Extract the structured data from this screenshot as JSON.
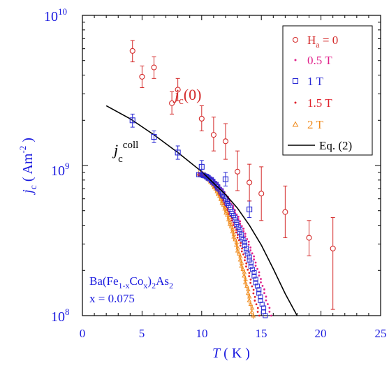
{
  "chart_data": {
    "type": "scatter",
    "xaxis": {
      "label_main": "T",
      "label_unit": " ( K )",
      "range": [
        0,
        25
      ],
      "ticks": [
        0,
        5,
        10,
        15,
        20,
        25
      ],
      "tick_labels": [
        "0",
        "5",
        "10",
        "15",
        "20",
        "25"
      ],
      "color": "#1a1adf"
    },
    "yaxis": {
      "label_main": "j",
      "label_sub": "c",
      "label_unit": " ( Am",
      "label_sup": "-2",
      "label_close": " )",
      "scale": "log",
      "range": [
        100000000.0,
        10000000000.0
      ],
      "major_ticks": [
        100000000.0,
        1000000000.0,
        10000000000.0
      ],
      "tick_base": "10",
      "tick_exps": [
        "8",
        "9",
        "10"
      ],
      "color": "#1a1adf"
    },
    "legend": {
      "placement": "top-right",
      "entries": [
        {
          "label_main": "H",
          "label_sub": "a",
          "label_rest": " = 0",
          "marker": "circle",
          "color": "#d42a2a"
        },
        {
          "label_main": "0.5 T",
          "marker": "dot",
          "color": "#e0208a"
        },
        {
          "label_main": "1 T",
          "marker": "square",
          "color": "#2a2ad4"
        },
        {
          "label_main": "1.5 T",
          "marker": "dot",
          "color": "#e0202a"
        },
        {
          "label_main": "2 T",
          "marker": "triangle",
          "color": "#f08a1a"
        },
        {
          "label_main": "Eq. (2)",
          "marker": "line",
          "color": "#000000"
        }
      ]
    },
    "annotations": {
      "jc0": {
        "main": "j",
        "sub": "c",
        "rest": "(0)",
        "color": "#d42a2a"
      },
      "jccoll": {
        "main": "j",
        "sub": "c",
        "sup": "coll",
        "color": "#000000"
      },
      "compound_line1": {
        "a": "Ba(Fe",
        "b": "1-x",
        "c": "Co",
        "d": "x",
        "e": ")",
        "f": "2",
        "g": "As",
        "h": "2"
      },
      "compound_line2": "x = 0.075",
      "compound_color": "#1a1adf"
    },
    "series": [
      {
        "name": "H_a = 0",
        "marker": "circle",
        "color": "#d42a2a",
        "points": [
          {
            "x": 4.2,
            "y": 5800000000.0,
            "err_lo": 4900000000.0,
            "err_hi": 6800000000.0
          },
          {
            "x": 5.0,
            "y": 3900000000.0,
            "err_lo": 3300000000.0,
            "err_hi": 4600000000.0
          },
          {
            "x": 6.0,
            "y": 4500000000.0,
            "err_lo": 3800000000.0,
            "err_hi": 5300000000.0
          },
          {
            "x": 7.5,
            "y": 2600000000.0,
            "err_lo": 2200000000.0,
            "err_hi": 3100000000.0
          },
          {
            "x": 8.0,
            "y": 3200000000.0,
            "err_lo": 2700000000.0,
            "err_hi": 3800000000.0
          },
          {
            "x": 10.0,
            "y": 2050000000.0,
            "err_lo": 1700000000.0,
            "err_hi": 2500000000.0
          },
          {
            "x": 11.0,
            "y": 1600000000.0,
            "err_lo": 1250000000.0,
            "err_hi": 2100000000.0
          },
          {
            "x": 12.0,
            "y": 1450000000.0,
            "err_lo": 1100000000.0,
            "err_hi": 1900000000.0
          },
          {
            "x": 13.0,
            "y": 910000000.0,
            "err_lo": 680000000.0,
            "err_hi": 1250000000.0
          },
          {
            "x": 14.0,
            "y": 770000000.0,
            "err_lo": 580000000.0,
            "err_hi": 1020000000.0
          },
          {
            "x": 15.0,
            "y": 650000000.0,
            "err_lo": 430000000.0,
            "err_hi": 980000000.0
          },
          {
            "x": 17.0,
            "y": 490000000.0,
            "err_lo": 330000000.0,
            "err_hi": 730000000.0
          },
          {
            "x": 19.0,
            "y": 330000000.0,
            "err_lo": 250000000.0,
            "err_hi": 430000000.0
          },
          {
            "x": 21.0,
            "y": 280000000.0,
            "err_lo": 110000000.0,
            "err_hi": 450000000.0
          }
        ]
      },
      {
        "name": "1 T",
        "marker": "square",
        "color": "#2a2ad4",
        "points": [
          {
            "x": 4.2,
            "y": 2000000000.0,
            "err_lo": 1800000000.0,
            "err_hi": 2200000000.0
          },
          {
            "x": 6.0,
            "y": 1550000000.0,
            "err_lo": 1420000000.0,
            "err_hi": 1700000000.0
          },
          {
            "x": 8.0,
            "y": 1220000000.0,
            "err_lo": 1100000000.0,
            "err_hi": 1350000000.0
          },
          {
            "x": 10.0,
            "y": 980000000.0,
            "err_lo": 890000000.0,
            "err_hi": 1080000000.0
          },
          {
            "x": 12.0,
            "y": 810000000.0,
            "err_lo": 730000000.0,
            "err_hi": 900000000.0
          },
          {
            "x": 14.0,
            "y": 510000000.0,
            "err_lo": 450000000.0,
            "err_hi": 580000000.0
          }
        ],
        "curve": {
          "x_start": 9.8,
          "x_end": 15.3,
          "y_start": 870000000.0,
          "y_end": 100000000.0
        }
      },
      {
        "name": "0.5 T",
        "marker": "dot",
        "color": "#e0208a",
        "curve": {
          "x_start": 9.8,
          "x_end": 15.8,
          "y_start": 890000000.0,
          "y_end": 100000000.0
        }
      },
      {
        "name": "1.5 T",
        "marker": "dot",
        "color": "#e0202a",
        "curve": {
          "x_start": 9.8,
          "x_end": 14.8,
          "y_start": 860000000.0,
          "y_end": 100000000.0
        }
      },
      {
        "name": "2 T",
        "marker": "triangle",
        "color": "#f08a1a",
        "curve": {
          "x_start": 9.8,
          "x_end": 14.3,
          "y_start": 880000000.0,
          "y_end": 100000000.0
        }
      },
      {
        "name": "Eq. (2)",
        "marker": "line",
        "color": "#000000",
        "line": [
          [
            2.0,
            2500000000.0
          ],
          [
            4.0,
            2050000000.0
          ],
          [
            6.0,
            1600000000.0
          ],
          [
            8.0,
            1220000000.0
          ],
          [
            10.0,
            910000000.0
          ],
          [
            12.0,
            640000000.0
          ],
          [
            13.0,
            520000000.0
          ],
          [
            14.0,
            400000000.0
          ],
          [
            15.0,
            295000000.0
          ],
          [
            16.0,
            205000000.0
          ],
          [
            17.0,
            140000000.0
          ],
          [
            18.0,
            100000000.0
          ]
        ]
      }
    ]
  }
}
